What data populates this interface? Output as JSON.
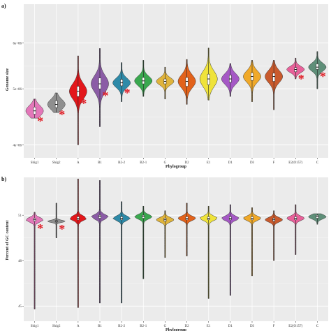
{
  "chart_data": [
    {
      "panel_label": "a)",
      "type": "violin",
      "xlabel": "Phylogroup",
      "ylabel": "Genome size",
      "yscale": "log",
      "ylim": [
        3800000,
        7000000
      ],
      "y_ticks": [
        4000000,
        5000000,
        6000000
      ],
      "y_tick_labels": [
        "4e+06",
        "5e+06",
        "6e+06"
      ],
      "grid": true,
      "categories": [
        "Shig1",
        "Shig2",
        "A",
        "B1",
        "B2-2",
        "B2-1",
        "G",
        "D2",
        "E1",
        "D1",
        "D3",
        "F",
        "E2(O157)",
        "C"
      ],
      "colors": [
        "#e377b9",
        "#8f8f8f",
        "#e3171b",
        "#8b5ca6",
        "#2e8aa8",
        "#3aa84f",
        "#e0b43c",
        "#e2621b",
        "#efe33a",
        "#a558c5",
        "#f0a929",
        "#c95a2c",
        "#e8619a",
        "#5f8f79"
      ],
      "medians": [
        4580000,
        4700000,
        4950000,
        5100000,
        5120000,
        5160000,
        5150000,
        5150000,
        5200000,
        5200000,
        5250000,
        5250000,
        5400000,
        5450000
      ],
      "q1": [
        4520000,
        4640000,
        4850000,
        5000000,
        5060000,
        5100000,
        5100000,
        5050000,
        5080000,
        5130000,
        5170000,
        5150000,
        5350000,
        5400000
      ],
      "q3": [
        4650000,
        4770000,
        5050000,
        5220000,
        5190000,
        5230000,
        5200000,
        5230000,
        5300000,
        5280000,
        5330000,
        5320000,
        5440000,
        5520000
      ],
      "mins": [
        4450000,
        4550000,
        4000000,
        4300000,
        4750000,
        4850000,
        4800000,
        4700000,
        4780000,
        4850000,
        4750000,
        4600000,
        5200000,
        5000000
      ],
      "maxs": [
        4800000,
        4920000,
        5700000,
        5870000,
        5550000,
        5600000,
        5450000,
        5620000,
        5880000,
        5530000,
        5600000,
        5600000,
        5650000,
        5800000
      ],
      "significant": [
        true,
        true,
        true,
        true,
        true,
        false,
        false,
        false,
        false,
        false,
        false,
        false,
        true,
        true
      ]
    },
    {
      "panel_label": "b)",
      "type": "violin",
      "xlabel": "Phylogroup",
      "ylabel": "Percent of GC content",
      "ylim": [
        44,
        53.5
      ],
      "y_ticks": [
        45,
        48,
        51
      ],
      "y_tick_labels": [
        "45",
        "48",
        "51"
      ],
      "grid": true,
      "categories": [
        "Shig1",
        "Shig2",
        "A",
        "B1",
        "B2-2",
        "B2-1",
        "G",
        "D2",
        "E1",
        "D1",
        "D3",
        "F",
        "E2(O157)",
        "C"
      ],
      "colors": [
        "#e377b9",
        "#8f8f8f",
        "#e3171b",
        "#8b5ca6",
        "#2e8aa8",
        "#3aa84f",
        "#e0b43c",
        "#e2621b",
        "#efe33a",
        "#a558c5",
        "#f0a929",
        "#c95a2c",
        "#e8619a",
        "#5f8f79"
      ],
      "medians": [
        50.7,
        50.6,
        50.8,
        50.9,
        50.8,
        50.9,
        50.7,
        50.8,
        50.8,
        50.8,
        50.8,
        50.7,
        50.8,
        50.9
      ],
      "q1": [
        50.6,
        50.55,
        50.7,
        50.8,
        50.7,
        50.8,
        50.6,
        50.7,
        50.7,
        50.7,
        50.7,
        50.6,
        50.7,
        50.8
      ],
      "q3": [
        50.8,
        50.65,
        50.9,
        51.0,
        50.9,
        51.0,
        50.8,
        50.9,
        50.9,
        50.9,
        50.9,
        50.8,
        50.9,
        51.0
      ],
      "mins": [
        44.8,
        49.5,
        44.9,
        45.2,
        45.2,
        46.8,
        48.2,
        48.3,
        45.5,
        45.7,
        47.0,
        48.0,
        48.4,
        50.4
      ],
      "maxs": [
        51.2,
        51.8,
        53.4,
        53.3,
        51.9,
        51.6,
        51.3,
        51.8,
        51.6,
        51.7,
        51.5,
        51.3,
        51.7,
        51.1
      ],
      "significant": [
        true,
        true,
        false,
        false,
        false,
        false,
        false,
        false,
        false,
        false,
        false,
        false,
        false,
        false
      ]
    }
  ]
}
